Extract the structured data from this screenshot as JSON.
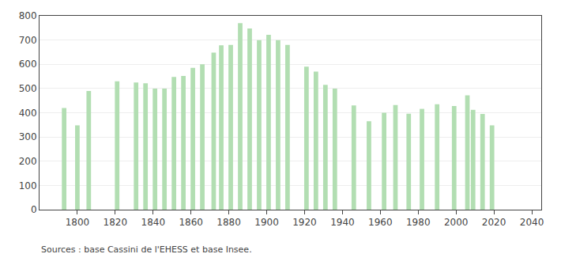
{
  "chart_data": {
    "type": "bar",
    "x": [
      1793,
      1800,
      1806,
      1821,
      1831,
      1836,
      1841,
      1846,
      1851,
      1856,
      1861,
      1866,
      1872,
      1876,
      1881,
      1886,
      1891,
      1896,
      1901,
      1906,
      1911,
      1921,
      1926,
      1931,
      1936,
      1946,
      1954,
      1962,
      1968,
      1975,
      1982,
      1990,
      1999,
      2006,
      2009,
      2014,
      2019
    ],
    "values": [
      420,
      348,
      490,
      530,
      525,
      522,
      500,
      500,
      548,
      552,
      585,
      600,
      648,
      678,
      680,
      770,
      748,
      700,
      722,
      700,
      680,
      590,
      570,
      515,
      500,
      430,
      365,
      400,
      432,
      396,
      416,
      435,
      428,
      472,
      412,
      395,
      348
    ],
    "color": "#b2deb2",
    "xlim": [
      1780,
      2045
    ],
    "xticks": [
      1800,
      1820,
      1840,
      1860,
      1880,
      1900,
      1920,
      1940,
      1960,
      1980,
      2000,
      2020,
      2040
    ],
    "ylim": [
      0,
      800
    ],
    "yticks": [
      0,
      100,
      200,
      300,
      400,
      500,
      600,
      700,
      800
    ],
    "grid": true,
    "annotations": [
      "Sources : base Cassini de l'EHESS et base Insee."
    ]
  }
}
